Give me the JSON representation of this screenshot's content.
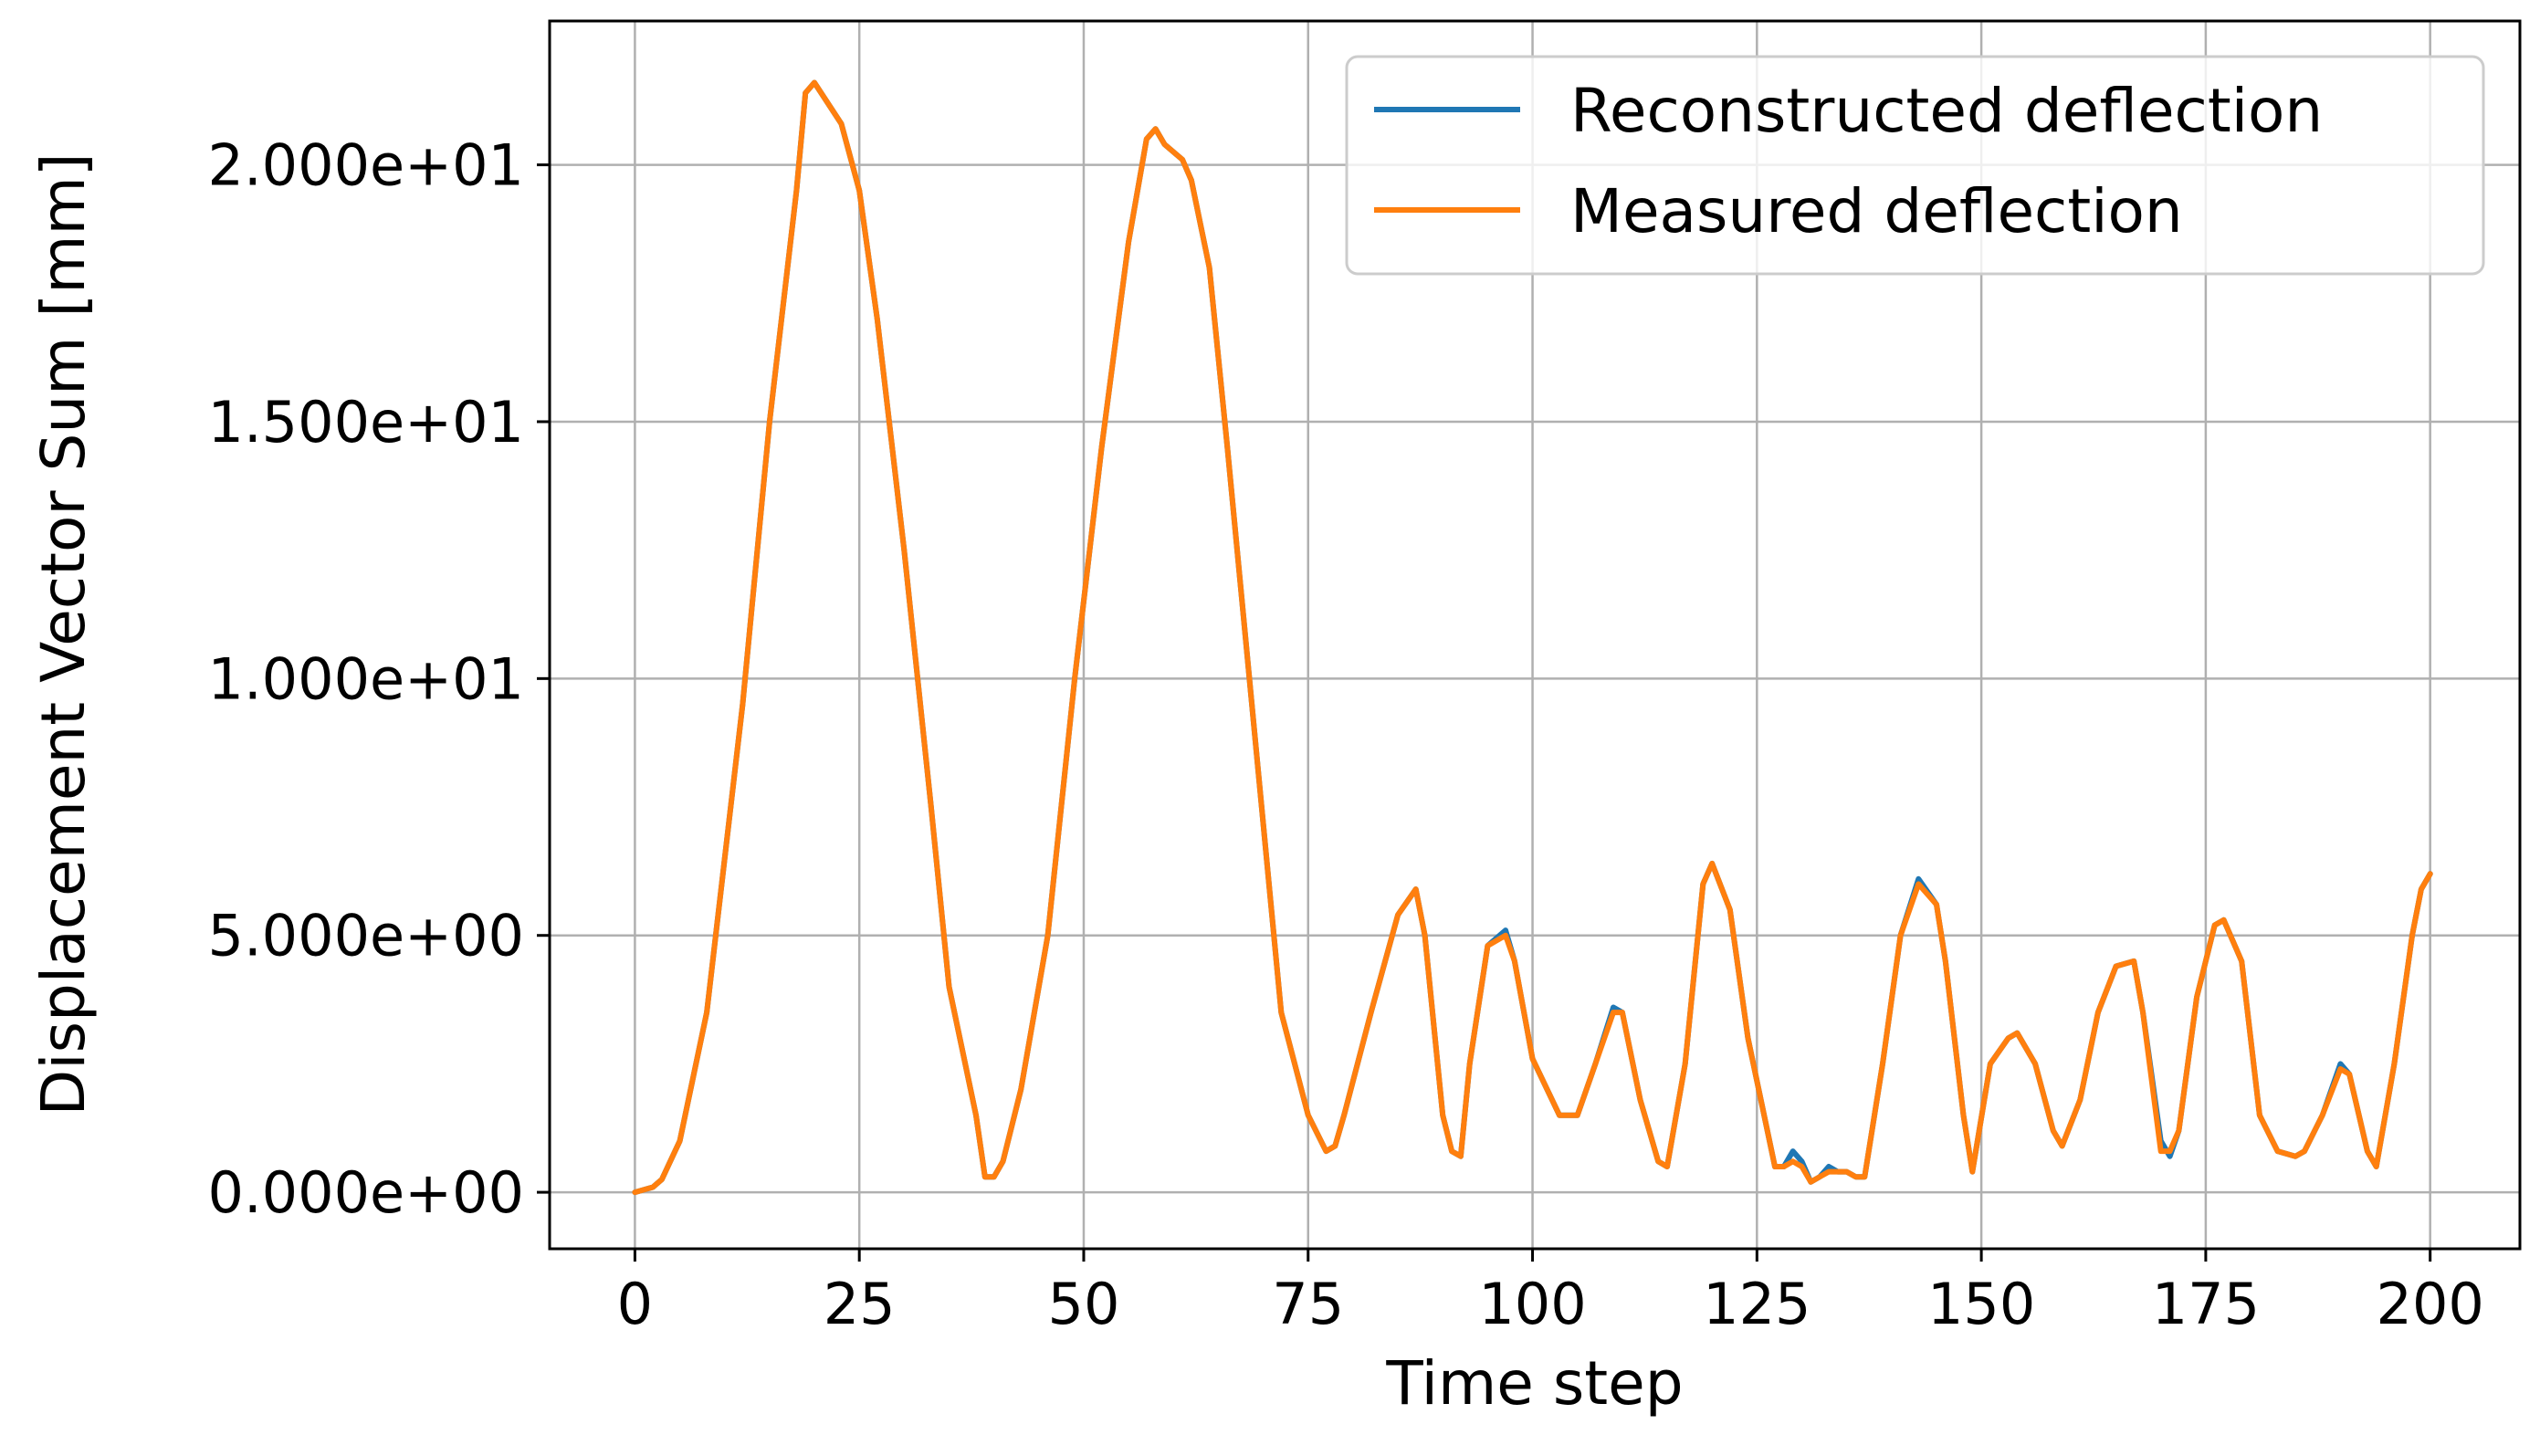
{
  "chart_data": {
    "type": "line",
    "title": "",
    "xlabel": "Time step",
    "ylabel": "Displacement Vector Sum [mm]",
    "xlim": [
      -9.5,
      210
    ],
    "ylim": [
      -1.1,
      22.8
    ],
    "xticks": [
      0,
      25,
      50,
      75,
      100,
      125,
      150,
      175,
      200
    ],
    "xtick_labels": [
      "0",
      "25",
      "50",
      "75",
      "100",
      "125",
      "150",
      "175",
      "200"
    ],
    "yticks": [
      0,
      5,
      10,
      15,
      20
    ],
    "ytick_labels": [
      "0.000e+00",
      "5.000e+00",
      "1.000e+01",
      "1.500e+01",
      "2.000e+01"
    ],
    "grid": true,
    "legend_position": "top-right",
    "series": [
      {
        "name": "Reconstructed deflection",
        "color": "#1f77b4",
        "x": [
          0,
          2,
          3,
          5,
          8,
          12,
          15,
          18,
          19,
          20,
          23,
          25,
          27,
          30,
          33,
          35,
          38,
          39,
          40,
          41,
          43,
          46,
          49,
          52,
          55,
          57,
          58,
          59,
          61,
          62,
          64,
          66,
          69,
          72,
          75,
          77,
          78,
          79,
          82,
          85,
          87,
          88,
          90,
          91,
          92,
          93,
          95,
          97,
          98,
          100,
          103,
          105,
          107,
          109,
          110,
          112,
          114,
          115,
          117,
          119,
          120,
          122,
          124,
          127,
          128,
          129,
          130,
          131,
          132,
          133,
          134,
          135,
          136,
          137,
          139,
          141,
          143,
          145,
          146,
          148,
          149,
          151,
          153,
          154,
          156,
          158,
          159,
          161,
          163,
          165,
          167,
          168,
          170,
          171,
          172,
          174,
          176,
          177,
          179,
          181,
          183,
          185,
          186,
          188,
          190,
          191,
          193,
          194,
          196,
          198,
          199,
          200
        ],
        "y": [
          0.0,
          0.1,
          0.25,
          1.0,
          3.5,
          9.5,
          15.0,
          19.5,
          21.4,
          21.6,
          20.8,
          19.5,
          17.0,
          12.5,
          7.5,
          4.0,
          1.5,
          0.3,
          0.3,
          0.6,
          2.0,
          5.0,
          10.0,
          14.5,
          18.5,
          20.5,
          20.7,
          20.4,
          20.1,
          19.7,
          18.0,
          14.5,
          9.0,
          3.5,
          1.5,
          0.8,
          0.9,
          1.5,
          3.5,
          5.4,
          5.9,
          5.0,
          1.5,
          0.8,
          0.7,
          2.5,
          4.8,
          5.1,
          4.5,
          2.6,
          1.5,
          1.5,
          2.5,
          3.6,
          3.5,
          1.8,
          0.6,
          0.5,
          2.5,
          6.0,
          6.4,
          5.5,
          3.0,
          0.5,
          0.5,
          0.8,
          0.6,
          0.2,
          0.3,
          0.5,
          0.4,
          0.4,
          0.3,
          0.3,
          2.5,
          5.0,
          6.1,
          5.6,
          4.5,
          1.5,
          0.4,
          2.5,
          3.0,
          3.1,
          2.5,
          1.2,
          0.9,
          1.8,
          3.5,
          4.4,
          4.5,
          3.5,
          1.0,
          0.7,
          1.2,
          3.8,
          5.2,
          5.3,
          4.5,
          1.5,
          0.8,
          0.7,
          0.8,
          1.5,
          2.5,
          2.3,
          0.8,
          0.5,
          2.5,
          5.0,
          5.9,
          6.2
        ]
      },
      {
        "name": "Measured deflection",
        "color": "#ff7f0e",
        "x": [
          0,
          2,
          3,
          5,
          8,
          12,
          15,
          18,
          19,
          20,
          23,
          25,
          27,
          30,
          33,
          35,
          38,
          39,
          40,
          41,
          43,
          46,
          49,
          52,
          55,
          57,
          58,
          59,
          61,
          62,
          64,
          66,
          69,
          72,
          75,
          77,
          78,
          79,
          82,
          85,
          87,
          88,
          90,
          91,
          92,
          93,
          95,
          97,
          98,
          100,
          103,
          105,
          107,
          109,
          110,
          112,
          114,
          115,
          117,
          119,
          120,
          122,
          124,
          127,
          128,
          129,
          130,
          131,
          132,
          133,
          134,
          135,
          136,
          137,
          139,
          141,
          143,
          145,
          146,
          148,
          149,
          151,
          153,
          154,
          156,
          158,
          159,
          161,
          163,
          165,
          167,
          168,
          170,
          171,
          172,
          174,
          176,
          177,
          179,
          181,
          183,
          185,
          186,
          188,
          190,
          191,
          193,
          194,
          196,
          198,
          199,
          200
        ],
        "y": [
          0.0,
          0.1,
          0.25,
          1.0,
          3.5,
          9.5,
          15.0,
          19.5,
          21.4,
          21.6,
          20.8,
          19.5,
          17.0,
          12.5,
          7.5,
          4.0,
          1.5,
          0.3,
          0.3,
          0.6,
          2.0,
          5.0,
          10.0,
          14.5,
          18.5,
          20.5,
          20.7,
          20.4,
          20.1,
          19.7,
          18.0,
          14.5,
          9.0,
          3.5,
          1.5,
          0.8,
          0.9,
          1.5,
          3.5,
          5.4,
          5.9,
          5.0,
          1.5,
          0.8,
          0.7,
          2.5,
          4.8,
          5.0,
          4.5,
          2.6,
          1.5,
          1.5,
          2.5,
          3.5,
          3.5,
          1.8,
          0.6,
          0.5,
          2.5,
          6.0,
          6.4,
          5.5,
          3.0,
          0.5,
          0.5,
          0.6,
          0.5,
          0.2,
          0.3,
          0.4,
          0.4,
          0.4,
          0.3,
          0.3,
          2.5,
          5.0,
          6.0,
          5.6,
          4.5,
          1.5,
          0.4,
          2.5,
          3.0,
          3.1,
          2.5,
          1.2,
          0.9,
          1.8,
          3.5,
          4.4,
          4.5,
          3.5,
          0.8,
          0.8,
          1.2,
          3.8,
          5.2,
          5.3,
          4.5,
          1.5,
          0.8,
          0.7,
          0.8,
          1.5,
          2.4,
          2.3,
          0.8,
          0.5,
          2.5,
          5.0,
          5.9,
          6.2
        ]
      }
    ]
  }
}
